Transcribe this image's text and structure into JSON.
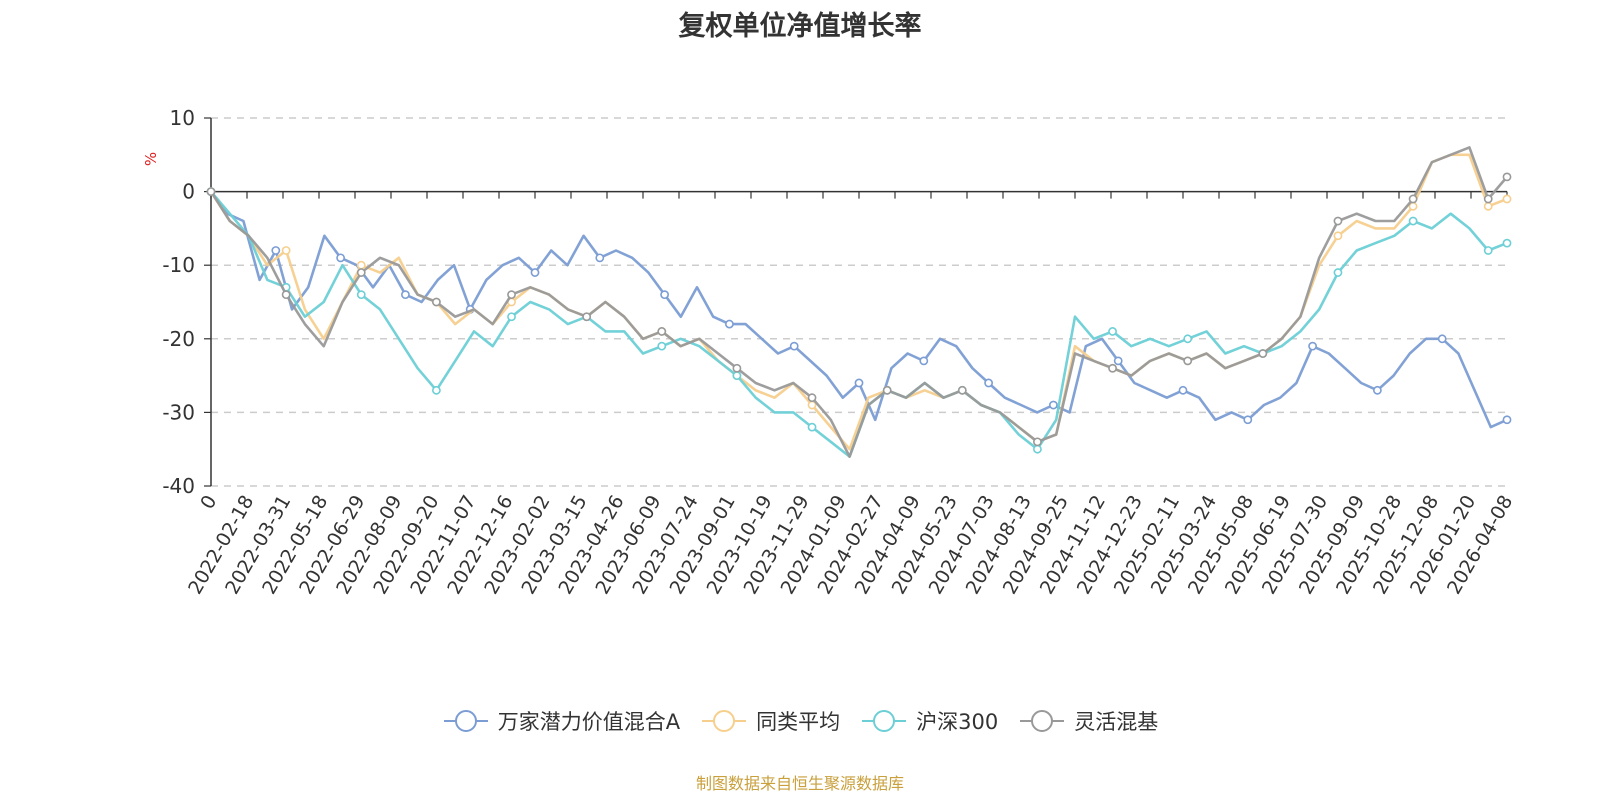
{
  "chart_data": {
    "type": "line",
    "title": "复权单位净值增长率",
    "ylabel": "%",
    "ylim": [
      -40,
      10
    ],
    "yticks": [
      10,
      0,
      -10,
      -20,
      -30,
      -40
    ],
    "grid": true,
    "legend_position": "bottom",
    "x_tick_labels": [
      "0",
      "2022-02-18",
      "2022-03-31",
      "2022-05-18",
      "2022-06-29",
      "2022-08-09",
      "2022-09-20",
      "2022-11-07",
      "2022-12-16",
      "2023-02-02",
      "2023-03-15",
      "2023-04-26",
      "2023-06-09",
      "2023-07-24",
      "2023-09-01",
      "2023-10-19",
      "2023-11-29",
      "2024-01-09",
      "2024-02-27",
      "2024-04-09",
      "2024-05-23",
      "2024-07-03",
      "2024-08-13",
      "2024-09-25",
      "2024-11-12",
      "2024-12-23",
      "2025-02-11",
      "2025-03-24",
      "2025-05-08",
      "2025-06-19",
      "2025-07-30",
      "2025-09-09",
      "2025-10-28",
      "2025-12-08",
      "2026-01-20",
      "2026-04-08"
    ],
    "series": [
      {
        "name": "万家潜力价值混合A",
        "color": "#7b9dd4",
        "values": [
          0,
          -3,
          -4,
          -12,
          -8,
          -16,
          -13,
          -6,
          -9,
          -10,
          -13,
          -10,
          -14,
          -15,
          -12,
          -10,
          -16,
          -12,
          -10,
          -9,
          -11,
          -8,
          -10,
          -6,
          -9,
          -8,
          -9,
          -11,
          -14,
          -17,
          -13,
          -17,
          -18,
          -18,
          -20,
          -22,
          -21,
          -23,
          -25,
          -28,
          -26,
          -31,
          -24,
          -22,
          -23,
          -20,
          -21,
          -24,
          -26,
          -28,
          -29,
          -30,
          -29,
          -30,
          -21,
          -20,
          -23,
          -26,
          -27,
          -28,
          -27,
          -28,
          -31,
          -30,
          -31,
          -29,
          -28,
          -26,
          -21,
          -22,
          -24,
          -26,
          -27,
          -25,
          -22,
          -20,
          -20,
          -22,
          -27,
          -32,
          -31
        ]
      },
      {
        "name": "同类平均",
        "color": "#f7cf8d",
        "values": [
          0,
          -4,
          -6,
          -10,
          -8,
          -16,
          -20,
          -15,
          -10,
          -11,
          -9,
          -14,
          -15,
          -18,
          -16,
          -18,
          -15,
          -13,
          -14,
          -16,
          -17,
          -15,
          -17,
          -20,
          -19,
          -21,
          -20,
          -23,
          -25,
          -27,
          -28,
          -26,
          -29,
          -32,
          -35,
          -28,
          -27,
          -28,
          -27,
          -28,
          -27,
          -29,
          -30,
          -32,
          -34,
          -33,
          -21,
          -23,
          -24,
          -25,
          -23,
          -22,
          -23,
          -22,
          -24,
          -23,
          -22,
          -20,
          -17,
          -10,
          -6,
          -4,
          -5,
          -5,
          -2,
          4,
          5,
          5,
          -2,
          -1
        ]
      },
      {
        "name": "沪深300",
        "color": "#6ccfd6",
        "values": [
          0,
          -3,
          -6,
          -12,
          -13,
          -17,
          -15,
          -10,
          -14,
          -16,
          -20,
          -24,
          -27,
          -23,
          -19,
          -21,
          -17,
          -15,
          -16,
          -18,
          -17,
          -19,
          -19,
          -22,
          -21,
          -20,
          -21,
          -23,
          -25,
          -28,
          -30,
          -30,
          -32,
          -34,
          -36,
          -29,
          -27,
          -28,
          -26,
          -28,
          -27,
          -29,
          -30,
          -33,
          -35,
          -31,
          -17,
          -20,
          -19,
          -21,
          -20,
          -21,
          -20,
          -19,
          -22,
          -21,
          -22,
          -21,
          -19,
          -16,
          -11,
          -8,
          -7,
          -6,
          -4,
          -5,
          -3,
          -5,
          -8,
          -7
        ]
      },
      {
        "name": "灵活混基",
        "color": "#999999",
        "values": [
          0,
          -4,
          -6,
          -9,
          -14,
          -18,
          -21,
          -15,
          -11,
          -9,
          -10,
          -14,
          -15,
          -17,
          -16,
          -18,
          -14,
          -13,
          -14,
          -16,
          -17,
          -15,
          -17,
          -20,
          -19,
          -21,
          -20,
          -22,
          -24,
          -26,
          -27,
          -26,
          -28,
          -31,
          -36,
          -29,
          -27,
          -28,
          -26,
          -28,
          -27,
          -29,
          -30,
          -32,
          -34,
          -33,
          -22,
          -23,
          -24,
          -25,
          -23,
          -22,
          -23,
          -22,
          -24,
          -23,
          -22,
          -20,
          -17,
          -9,
          -4,
          -3,
          -4,
          -4,
          -1,
          4,
          5,
          6,
          -1,
          2
        ]
      }
    ]
  },
  "source_note": "制图数据来自恒生聚源数据库"
}
